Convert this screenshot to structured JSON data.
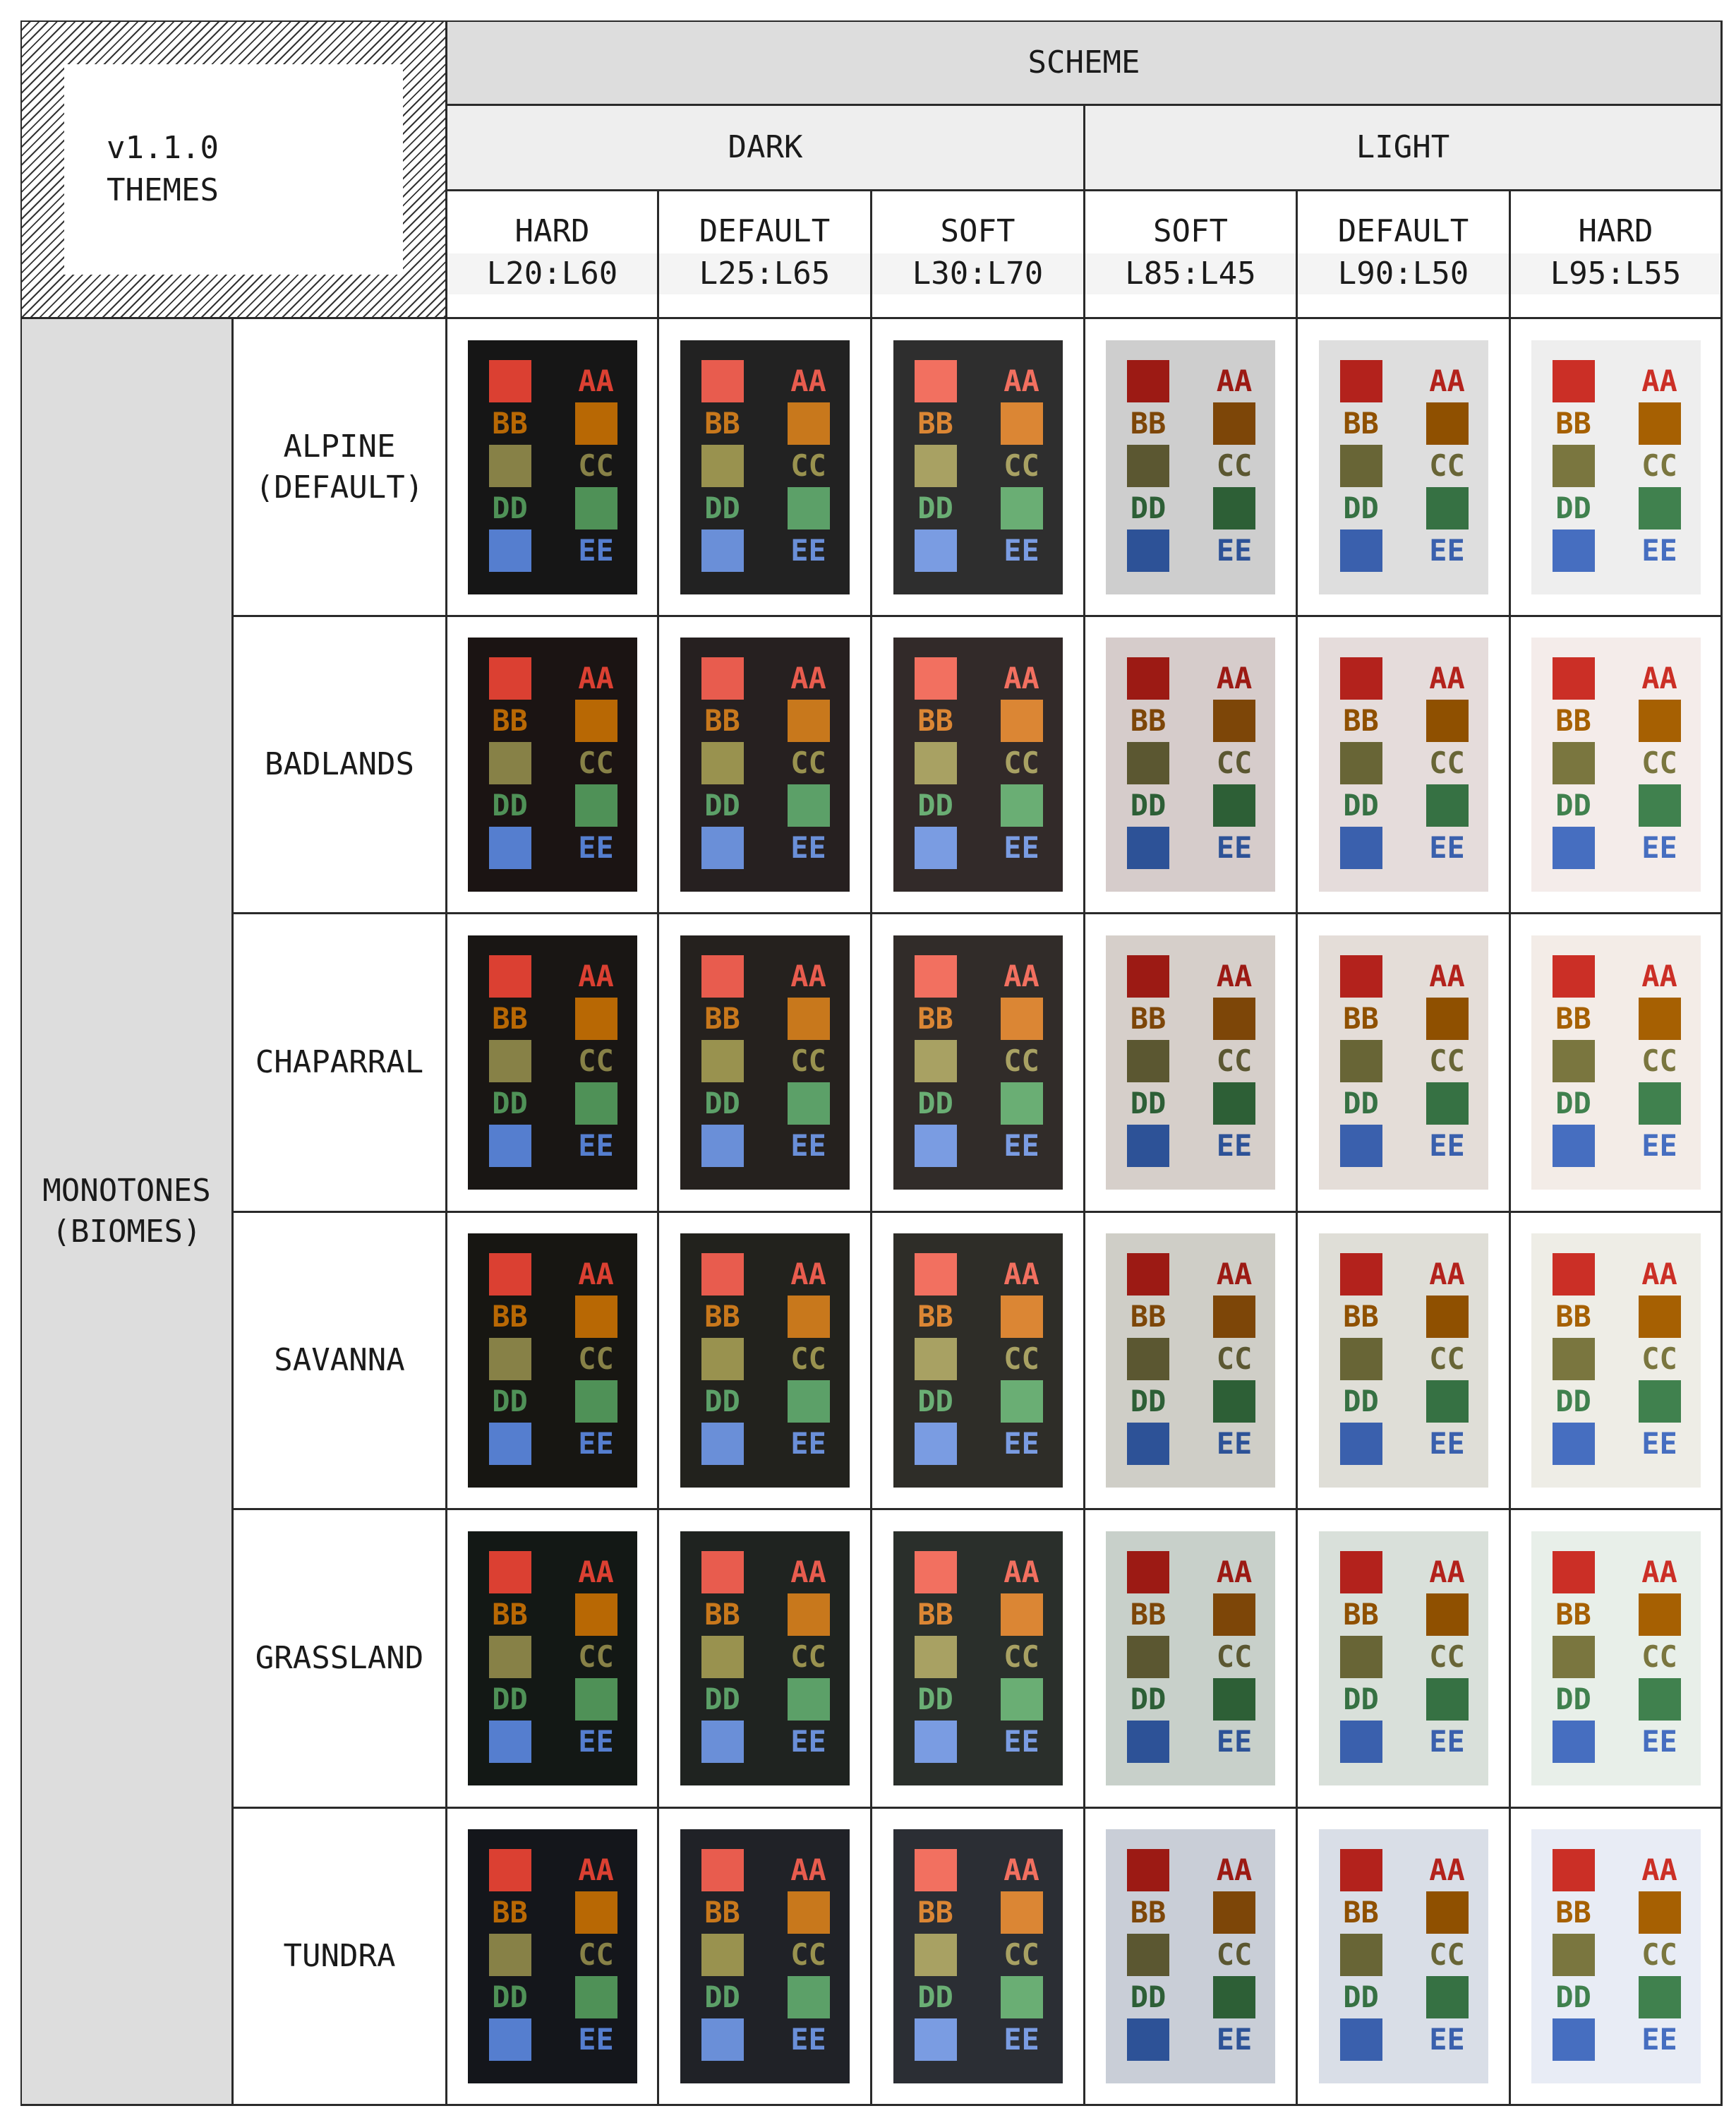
{
  "corner": {
    "version": "v1.1.0",
    "title": "THEMES"
  },
  "header": {
    "scheme": "SCHEME",
    "modes": [
      "DARK",
      "LIGHT"
    ],
    "variants": [
      {
        "name": "HARD",
        "range": "L20:L60"
      },
      {
        "name": "DEFAULT",
        "range": "L25:L65"
      },
      {
        "name": "SOFT",
        "range": "L30:L70"
      },
      {
        "name": "SOFT",
        "range": "L85:L45"
      },
      {
        "name": "DEFAULT",
        "range": "L90:L50"
      },
      {
        "name": "HARD",
        "range": "L95:L55"
      }
    ]
  },
  "group": {
    "line1": "MONOTONES",
    "line2": "(BIOMES)"
  },
  "swatch_labels": [
    "AA",
    "BB",
    "CC",
    "DD",
    "EE"
  ],
  "palettes": [
    [
      "#db4032",
      "#b86804",
      "#878147",
      "#4f9157",
      "#557ecf"
    ],
    [
      "#e85c4e",
      "#c8781c",
      "#99924f",
      "#5ca068",
      "#6a8fd8"
    ],
    [
      "#f27060",
      "#db8634",
      "#a8a163",
      "#6aae74",
      "#7a9ce2"
    ],
    [
      "#9c1a14",
      "#7d4608",
      "#5b5731",
      "#2d5f36",
      "#2d5297"
    ],
    [
      "#b3221c",
      "#8f5000",
      "#686536",
      "#367143",
      "#3a60ad"
    ],
    [
      "#cb2f26",
      "#a66002",
      "#7a763f",
      "#40814e",
      "#466ec0"
    ]
  ],
  "biomes": [
    {
      "name": "ALPINE",
      "sub": "(DEFAULT)",
      "backgrounds": [
        "#161616",
        "#222222",
        "#2e2e2e",
        "#cecece",
        "#dedede",
        "#eeeeee"
      ]
    },
    {
      "name": "BADLANDS",
      "sub": "",
      "backgrounds": [
        "#1b1413",
        "#262020",
        "#322a29",
        "#d6cccb",
        "#e5dcdb",
        "#f4ecea"
      ]
    },
    {
      "name": "CHAPARRAL",
      "sub": "",
      "backgrounds": [
        "#191614",
        "#25211e",
        "#312c29",
        "#d6cfca",
        "#e4ddd8",
        "#f3ece7"
      ]
    },
    {
      "name": "SAVANNA",
      "sub": "",
      "backgrounds": [
        "#171612",
        "#22221d",
        "#2e2d28",
        "#cfcec7",
        "#dfded7",
        "#eeede6"
      ]
    },
    {
      "name": "GRASSLAND",
      "sub": "",
      "backgrounds": [
        "#131815",
        "#1f2320",
        "#2a2f2b",
        "#c8d0ca",
        "#d9e0da",
        "#e8efe9"
      ]
    },
    {
      "name": "TUNDRA",
      "sub": "",
      "backgrounds": [
        "#14161b",
        "#202227",
        "#2b2e34",
        "#c9ced7",
        "#d9dee7",
        "#e8ecf5"
      ]
    }
  ]
}
